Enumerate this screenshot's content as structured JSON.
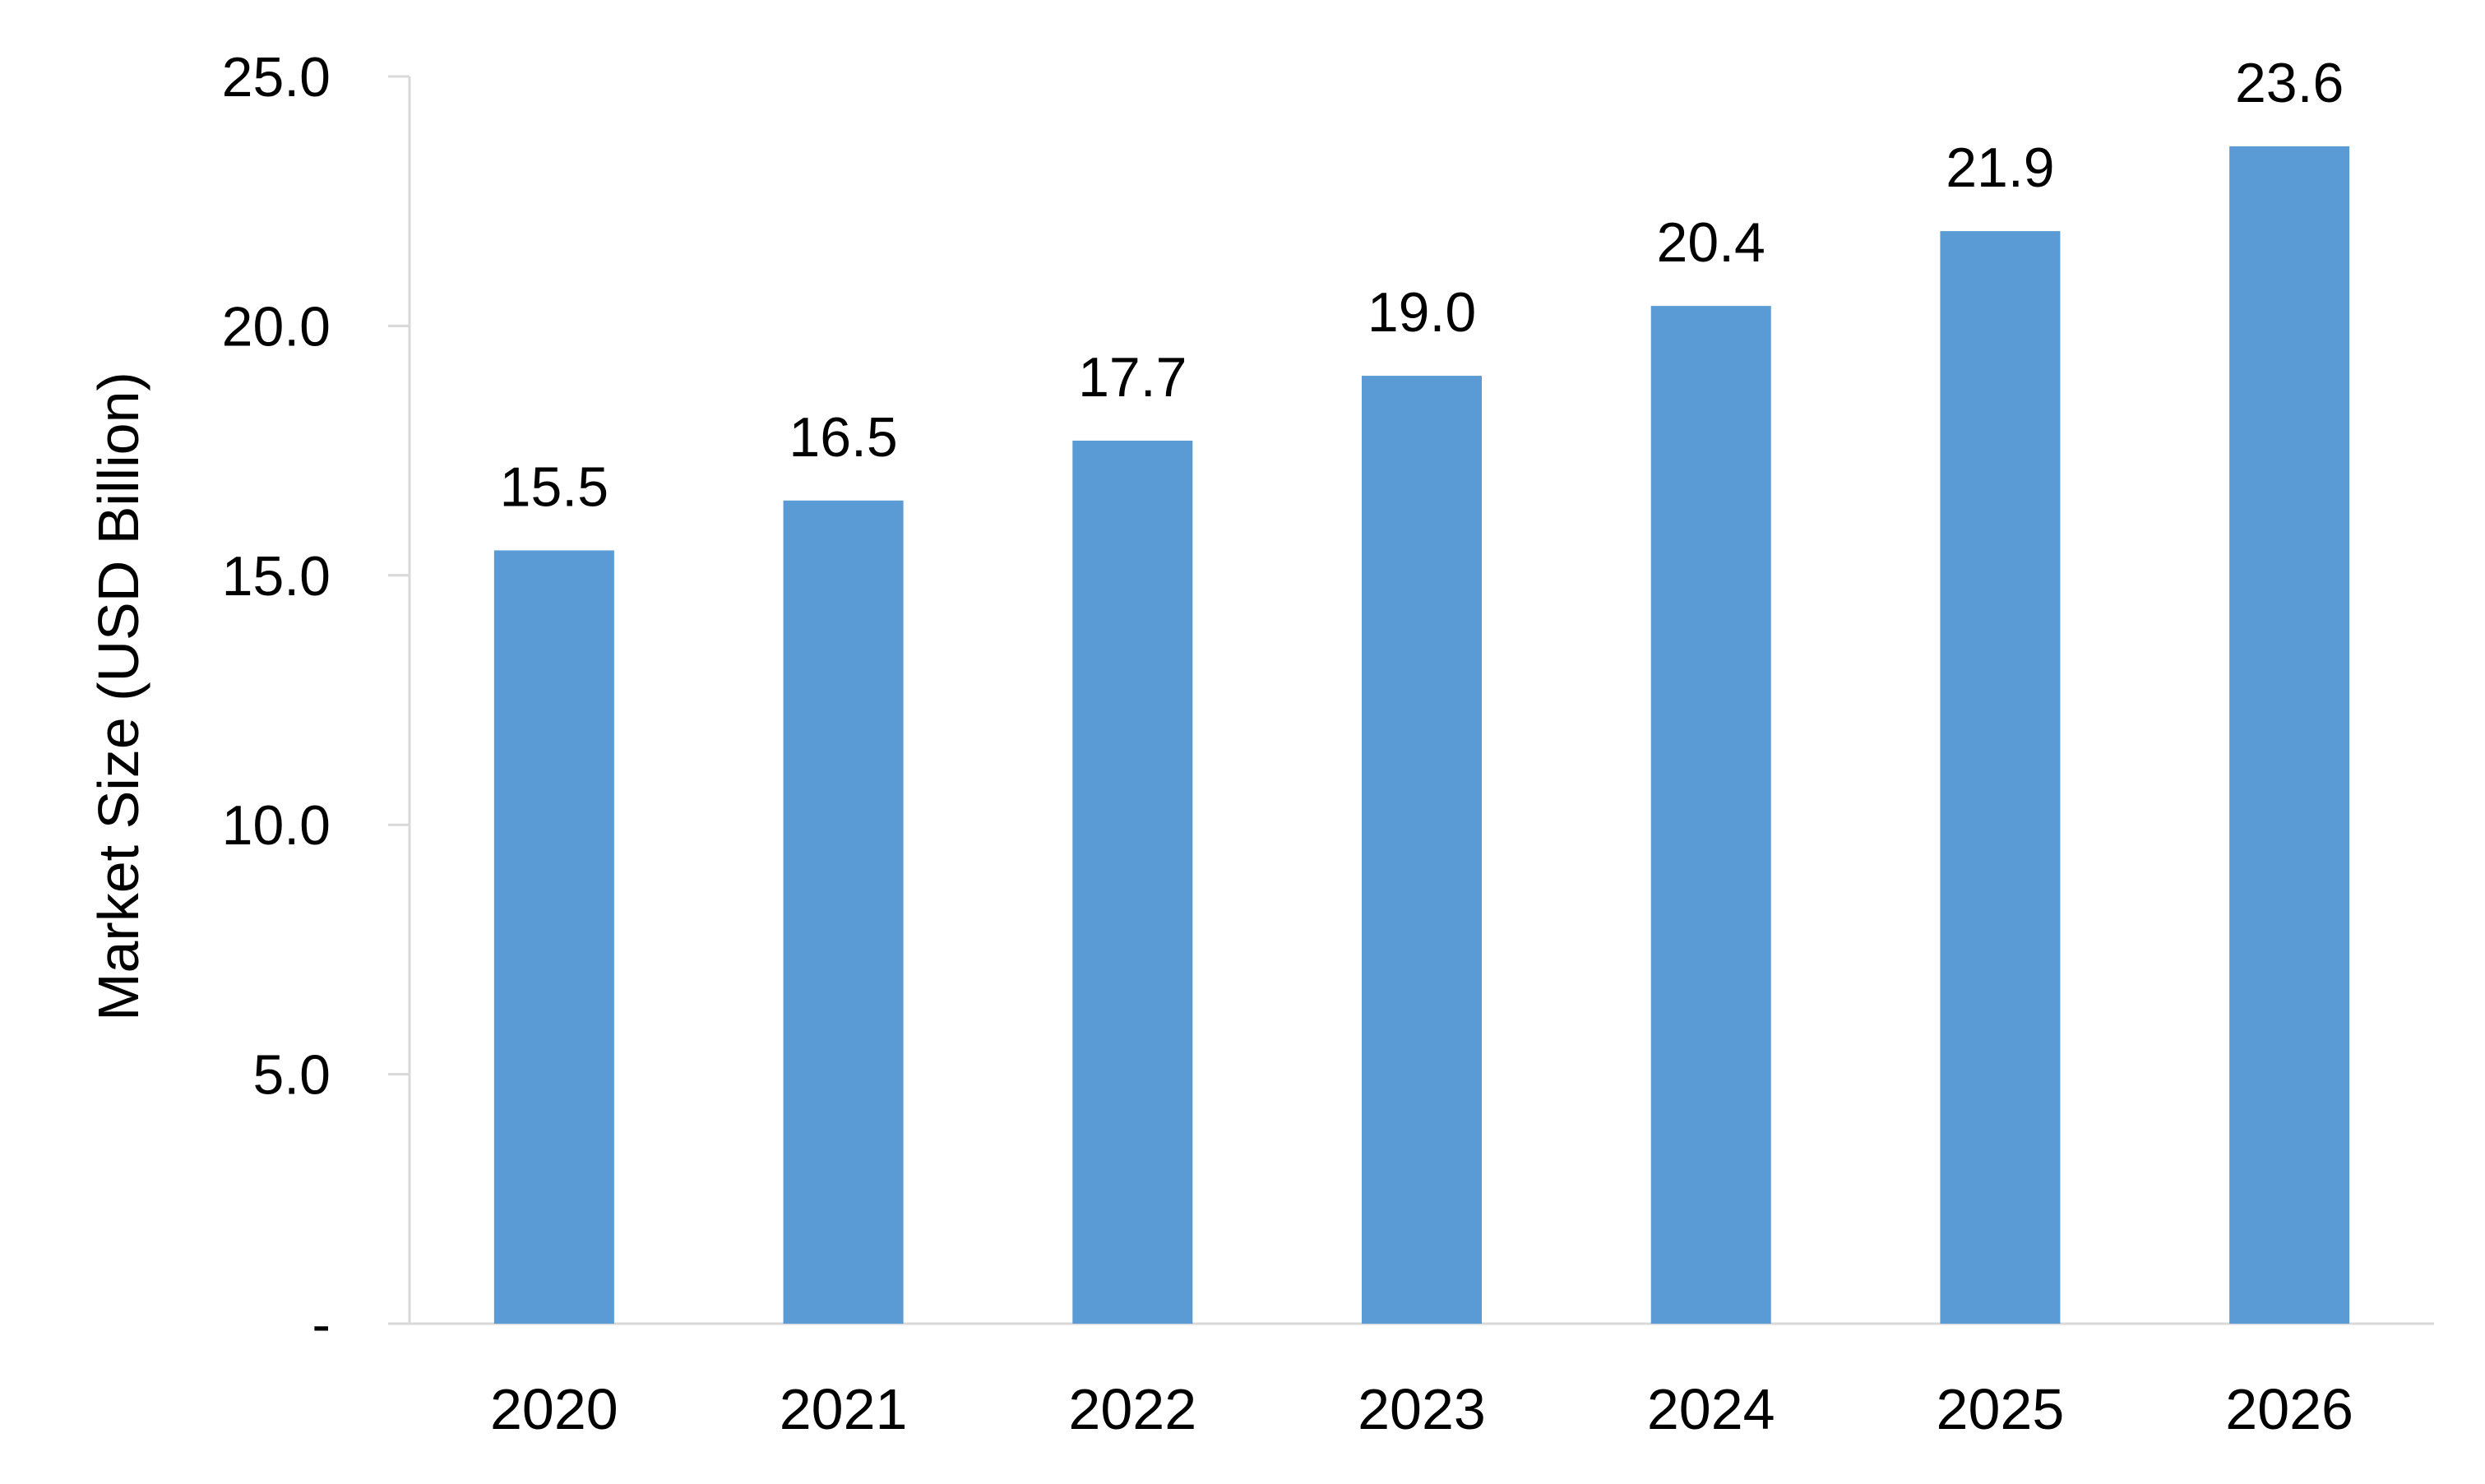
{
  "chart_data": {
    "type": "bar",
    "title": "",
    "xlabel": "",
    "ylabel": "Market Size (USD Billion)",
    "categories": [
      "2020",
      "2021",
      "2022",
      "2023",
      "2024",
      "2025",
      "2026"
    ],
    "values": [
      15.5,
      16.5,
      17.7,
      19.0,
      20.4,
      21.9,
      23.6
    ],
    "value_labels": [
      "15.5",
      "16.5",
      "17.7",
      "19.0",
      "20.4",
      "21.9",
      "23.6"
    ],
    "ylim": [
      0,
      25
    ],
    "yticks": [
      0,
      5,
      10,
      15,
      20,
      25
    ],
    "ytick_labels": [
      "-",
      "5.0",
      "10.0",
      "15.0",
      "20.0",
      "25.0"
    ],
    "bar_color": "#5B9BD5",
    "grid": false,
    "legend": "none"
  }
}
